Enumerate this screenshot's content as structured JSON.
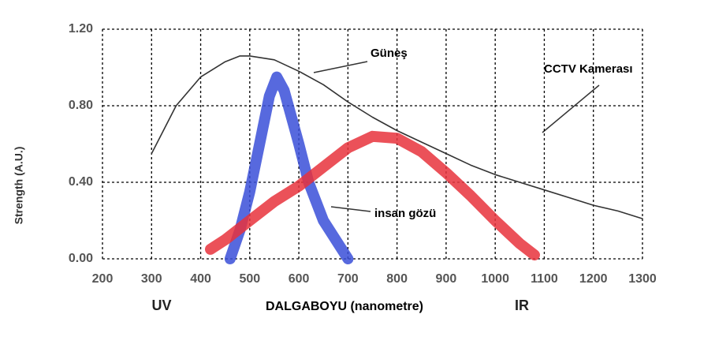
{
  "chart_data": {
    "type": "line",
    "x_label": "DALGABOYU (nanometre)",
    "y_label": "Strength (A.U.)",
    "annotations": [
      "UV",
      "IR"
    ],
    "xlim": [
      200,
      1300
    ],
    "xticks": [
      200,
      300,
      400,
      500,
      600,
      700,
      800,
      900,
      1000,
      1100,
      1200,
      1300
    ],
    "ylim": [
      0,
      1.2
    ],
    "yticks": [
      {
        "value": 0,
        "label": "0.00"
      },
      {
        "value": 0.4,
        "label": "0.40"
      },
      {
        "value": 0.8,
        "label": "0.80"
      },
      {
        "value": 1.2,
        "label": "1.20"
      }
    ],
    "grid": true,
    "series": [
      {
        "name": "Güneş",
        "color": "#333333",
        "x": [
          300,
          350,
          400,
          450,
          480,
          500,
          550,
          600,
          650,
          700,
          750,
          800,
          850,
          900,
          950,
          1000,
          1050,
          1100,
          1150,
          1200,
          1250,
          1300
        ],
        "values": [
          0.55,
          0.8,
          0.95,
          1.03,
          1.06,
          1.06,
          1.04,
          0.98,
          0.91,
          0.82,
          0.74,
          0.67,
          0.61,
          0.55,
          0.49,
          0.44,
          0.4,
          0.36,
          0.32,
          0.28,
          0.25,
          0.21
        ]
      },
      {
        "name": "insan gözü",
        "color": "#3a4fd8",
        "x": [
          460,
          480,
          500,
          520,
          540,
          555,
          570,
          600,
          620,
          650,
          680,
          700
        ],
        "values": [
          0,
          0.15,
          0.35,
          0.6,
          0.85,
          0.95,
          0.88,
          0.6,
          0.4,
          0.2,
          0.08,
          0
        ]
      },
      {
        "name": "CCTV Kamerası",
        "color": "#e8323c",
        "x": [
          420,
          450,
          500,
          550,
          600,
          650,
          700,
          750,
          800,
          850,
          900,
          950,
          1000,
          1050,
          1080
        ],
        "values": [
          0.05,
          0.1,
          0.2,
          0.3,
          0.38,
          0.48,
          0.58,
          0.64,
          0.63,
          0.56,
          0.45,
          0.33,
          0.2,
          0.08,
          0.02
        ]
      }
    ]
  }
}
